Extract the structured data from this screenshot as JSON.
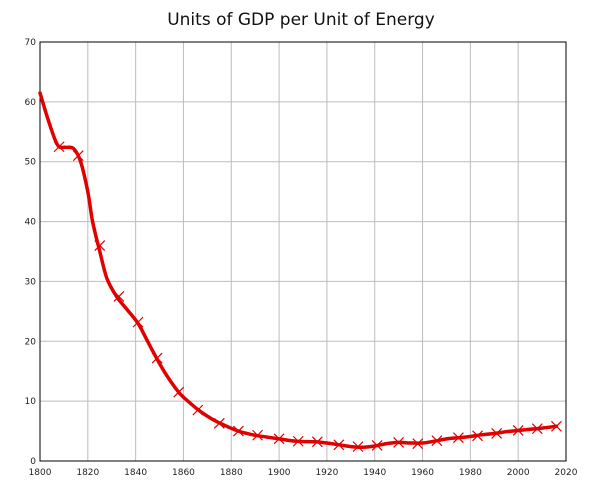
{
  "chart_data": {
    "type": "line",
    "title": "Units of GDP per Unit of Energy",
    "xlabel": "",
    "ylabel": "",
    "xlim": [
      1800,
      2020
    ],
    "ylim": [
      0,
      70
    ],
    "x_ticks": [
      "1800",
      "1820",
      "1840",
      "1860",
      "1880",
      "1900",
      "1920",
      "1940",
      "1960",
      "1980",
      "2000",
      "2020"
    ],
    "y_ticks": [
      "0",
      "10",
      "20",
      "30",
      "40",
      "50",
      "60",
      "70"
    ],
    "grid": true,
    "line_color": "#e00000",
    "curve": [
      [
        1800,
        61.5
      ],
      [
        1803,
        57.5
      ],
      [
        1806,
        54.0
      ],
      [
        1808,
        52.5
      ],
      [
        1811,
        52.4
      ],
      [
        1814,
        52.2
      ],
      [
        1817,
        50.0
      ],
      [
        1820,
        45.0
      ],
      [
        1822,
        40.0
      ],
      [
        1825,
        35.0
      ],
      [
        1828,
        30.5
      ],
      [
        1832,
        27.5
      ],
      [
        1836,
        25.5
      ],
      [
        1841,
        23.0
      ],
      [
        1845,
        20.0
      ],
      [
        1849,
        17.0
      ],
      [
        1853,
        14.3
      ],
      [
        1858,
        11.5
      ],
      [
        1863,
        9.6
      ],
      [
        1867,
        8.3
      ],
      [
        1872,
        7.0
      ],
      [
        1877,
        6.0
      ],
      [
        1883,
        5.0
      ],
      [
        1890,
        4.3
      ],
      [
        1895,
        4.0
      ],
      [
        1900,
        3.7
      ],
      [
        1907,
        3.3
      ],
      [
        1915,
        3.2
      ],
      [
        1920,
        3.0
      ],
      [
        1925,
        2.7
      ],
      [
        1930,
        2.4
      ],
      [
        1935,
        2.3
      ],
      [
        1940,
        2.5
      ],
      [
        1945,
        2.9
      ],
      [
        1950,
        3.1
      ],
      [
        1955,
        3.0
      ],
      [
        1960,
        3.0
      ],
      [
        1965,
        3.3
      ],
      [
        1970,
        3.7
      ],
      [
        1975,
        3.9
      ],
      [
        1980,
        4.1
      ],
      [
        1985,
        4.4
      ],
      [
        1990,
        4.6
      ],
      [
        1995,
        4.9
      ],
      [
        2000,
        5.1
      ],
      [
        2005,
        5.3
      ],
      [
        2010,
        5.5
      ],
      [
        2016,
        5.8
      ]
    ],
    "markers": [
      [
        1808,
        52.5
      ],
      [
        1816,
        51.0
      ],
      [
        1825,
        36.0
      ],
      [
        1833,
        27.5
      ],
      [
        1841,
        23.2
      ],
      [
        1849,
        17.2
      ],
      [
        1858,
        11.5
      ],
      [
        1866,
        8.5
      ],
      [
        1875,
        6.3
      ],
      [
        1883,
        5.0
      ],
      [
        1891,
        4.3
      ],
      [
        1900,
        3.7
      ],
      [
        1908,
        3.3
      ],
      [
        1916,
        3.2
      ],
      [
        1925,
        2.7
      ],
      [
        1933,
        2.4
      ],
      [
        1941,
        2.6
      ],
      [
        1950,
        3.1
      ],
      [
        1958,
        2.9
      ],
      [
        1966,
        3.4
      ],
      [
        1975,
        3.9
      ],
      [
        1983,
        4.2
      ],
      [
        1991,
        4.6
      ],
      [
        2000,
        5.1
      ],
      [
        2008,
        5.4
      ],
      [
        2016,
        5.8
      ]
    ]
  }
}
